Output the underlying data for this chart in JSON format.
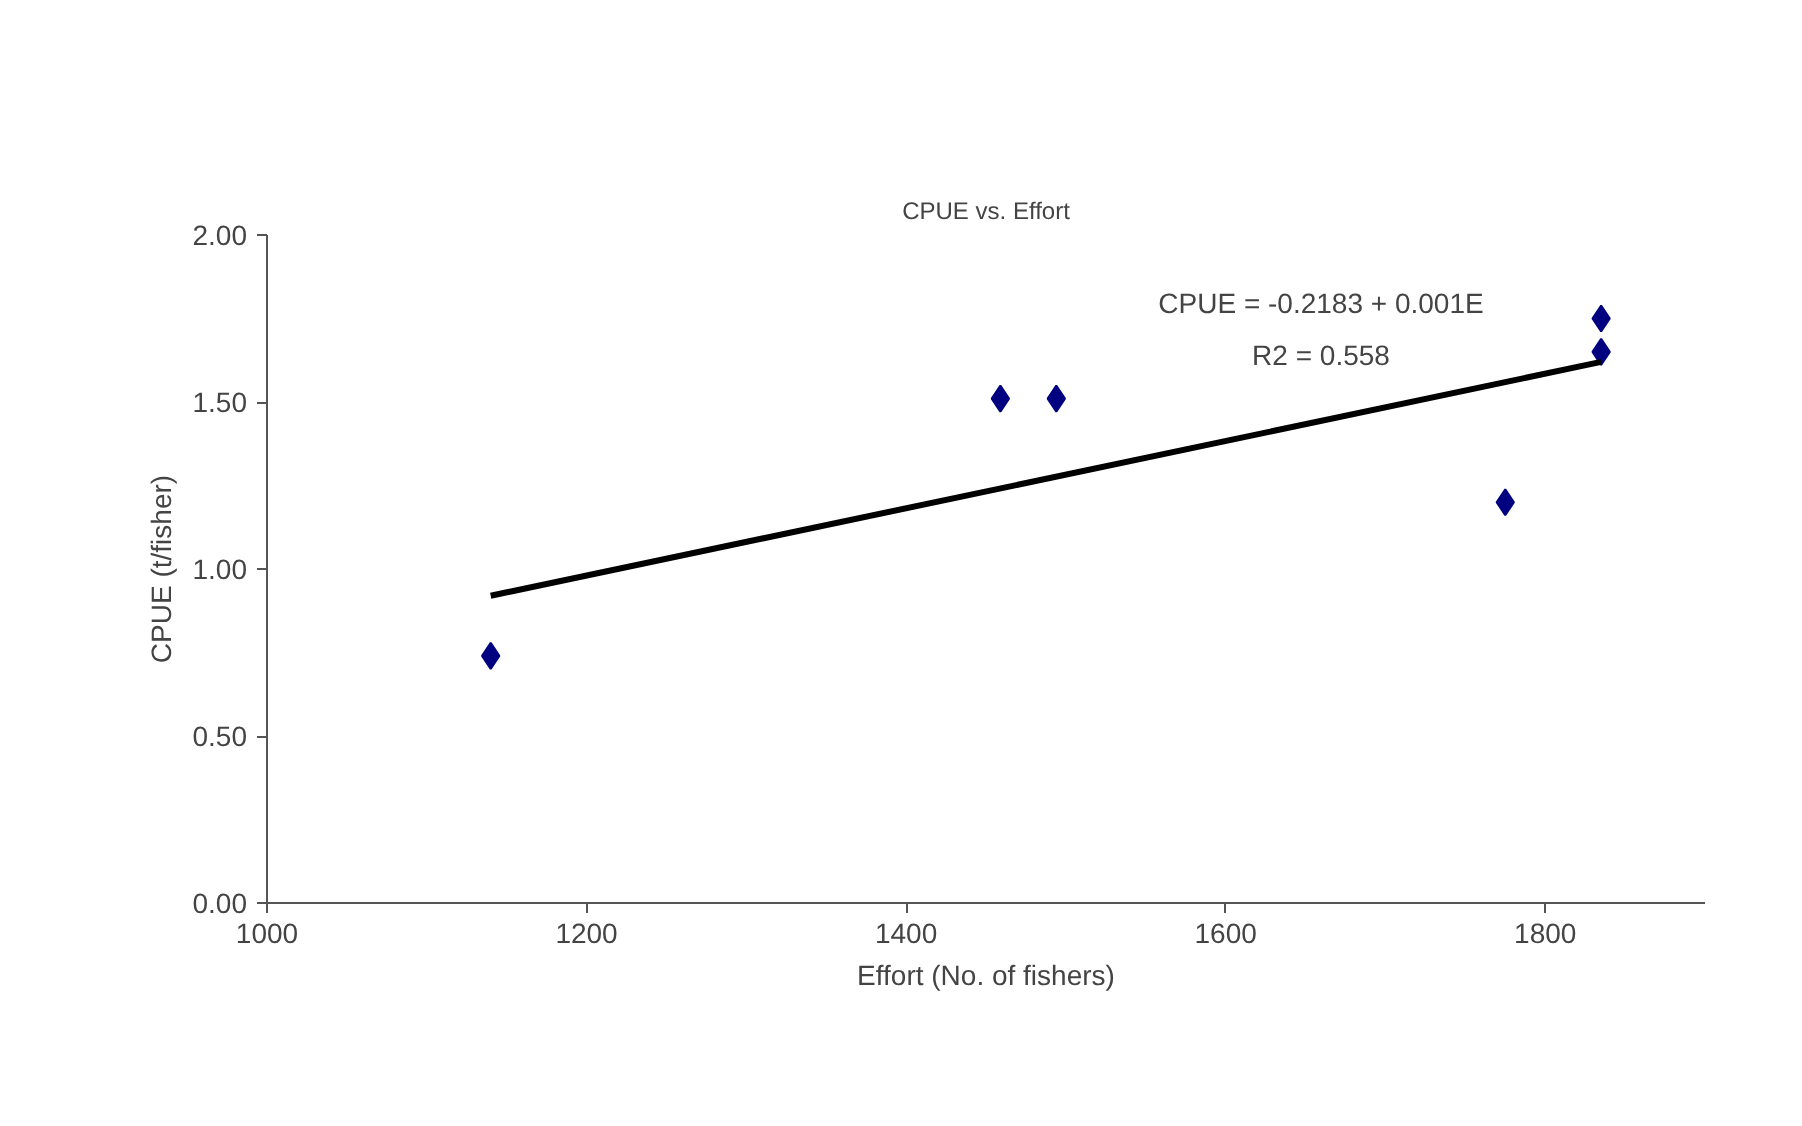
{
  "chart_data": {
    "type": "scatter",
    "title": "CPUE vs. Effort",
    "xlabel": "Effort (No. of fishers)",
    "ylabel": "CPUE (t/fisher)",
    "x": [
      1140,
      1459,
      1494,
      1775,
      1835,
      1835
    ],
    "series": [
      {
        "color": "#000080",
        "values": [
          0.74,
          1.51,
          1.51,
          1.2,
          1.65,
          1.75
        ],
        "marker": "diamond"
      },
      {
        "type": "line",
        "color": "#000000",
        "x": [
          1140,
          1835
        ],
        "values": [
          0.92,
          1.62
        ],
        "marker": "none",
        "line_style": "solid"
      }
    ],
    "xlim": [
      1000,
      1900
    ],
    "xticks": [
      1000,
      1200,
      1400,
      1600,
      1800
    ],
    "ylim": [
      0,
      2
    ],
    "yticks": [
      {
        "value": 0,
        "label": "0.00"
      },
      {
        "value": 0.5,
        "label": "0.50"
      },
      {
        "value": 1,
        "label": "1.00"
      },
      {
        "value": 1.5,
        "label": "1.50"
      },
      {
        "value": 2,
        "label": "2.00"
      }
    ],
    "annotations": [
      "CPUE = -0.2183 + 0.001E",
      "R2 = 0.558"
    ],
    "grid": false
  }
}
